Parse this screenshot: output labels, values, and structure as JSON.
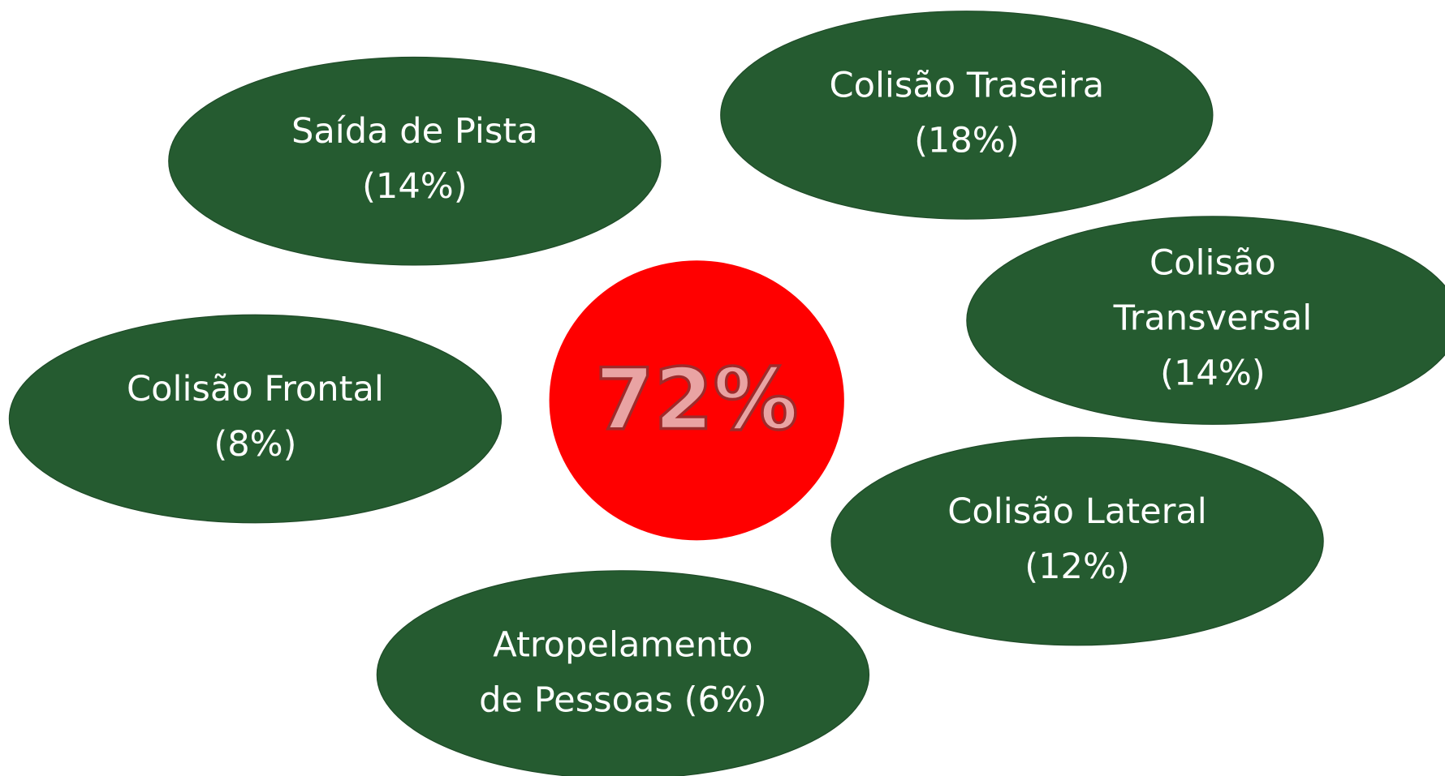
{
  "center": {
    "label": "72%"
  },
  "nodes": [
    {
      "lines": [
        "Saída de Pista",
        "(14%)"
      ]
    },
    {
      "lines": [
        "Colisão Traseira",
        "(18%)"
      ]
    },
    {
      "lines": [
        "Colisão",
        "Transversal",
        "(14%)"
      ]
    },
    {
      "lines": [
        "Colisão Frontal",
        "(8%)"
      ]
    },
    {
      "lines": [
        "Colisão Lateral",
        "(12%)"
      ]
    },
    {
      "lines": [
        "Atropelamento",
        "de Pessoas (6%)"
      ]
    }
  ]
}
